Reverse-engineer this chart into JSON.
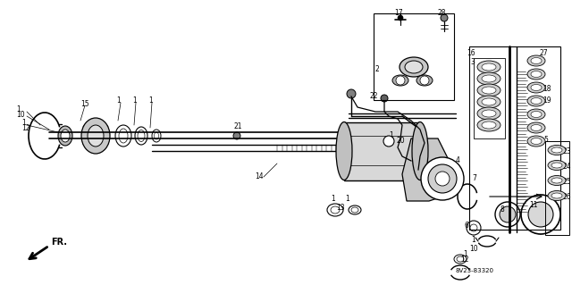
{
  "bg_color": "#ffffff",
  "diagram_code": "8V23-83320",
  "fr_label": "FR.",
  "line_color": "#000000",
  "text_color": "#000000",
  "figsize": [
    6.4,
    3.19
  ],
  "dpi": 100
}
